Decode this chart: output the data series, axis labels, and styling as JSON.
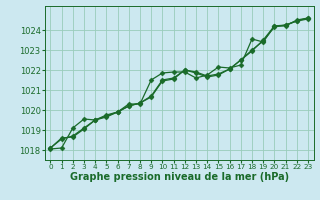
{
  "xlabel": "Graphe pression niveau de la mer (hPa)",
  "bg_color": "#cce8f0",
  "grid_color": "#99ccbb",
  "line_color": "#1a6b2a",
  "xlim": [
    -0.5,
    23.5
  ],
  "ylim": [
    1017.5,
    1025.2
  ],
  "yticks": [
    1018,
    1019,
    1020,
    1021,
    1022,
    1023,
    1024
  ],
  "xticks": [
    0,
    1,
    2,
    3,
    4,
    5,
    6,
    7,
    8,
    9,
    10,
    11,
    12,
    13,
    14,
    15,
    16,
    17,
    18,
    19,
    20,
    21,
    22,
    23
  ],
  "series": [
    [
      1018.1,
      1018.6,
      1018.65,
      1019.05,
      1019.5,
      1019.7,
      1019.9,
      1020.2,
      1020.35,
      1020.65,
      1021.45,
      1021.55,
      1022.0,
      1021.85,
      1021.65,
      1021.75,
      1022.05,
      1022.5,
      1022.95,
      1023.5,
      1024.2,
      1024.25,
      1024.45,
      1024.6
    ],
    [
      1018.05,
      1018.1,
      1019.1,
      1019.55,
      1019.5,
      1019.65,
      1019.9,
      1020.3,
      1020.3,
      1021.5,
      1021.85,
      1021.9,
      1021.9,
      1021.6,
      1021.75,
      1022.15,
      1022.1,
      1022.25,
      1023.55,
      1023.4,
      1024.2,
      1024.2,
      1024.5,
      1024.6
    ],
    [
      1018.1,
      1018.55,
      1018.7,
      1019.1,
      1019.5,
      1019.75,
      1019.9,
      1020.2,
      1020.35,
      1020.7,
      1021.5,
      1021.6,
      1022.0,
      1021.9,
      1021.7,
      1021.8,
      1022.05,
      1022.5,
      1023.0,
      1023.45,
      1024.15,
      1024.25,
      1024.45,
      1024.55
    ]
  ],
  "marker": "D",
  "markersize": 2.5,
  "linewidth": 0.9,
  "xlabel_fontsize": 7,
  "tick_fontsize": 6
}
